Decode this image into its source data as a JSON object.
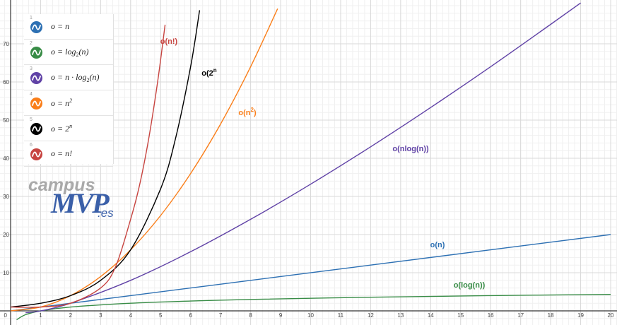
{
  "expressions": [
    {
      "num": "1",
      "lhs": "o = ",
      "body": "n",
      "color": "#2d70b3",
      "icon": "wave-icon"
    },
    {
      "num": "2",
      "lhs": "o = ",
      "body": "log",
      "sub": "2",
      "tail": "(n)",
      "color": "#388c46",
      "icon": "wave-icon"
    },
    {
      "num": "3",
      "lhs": "o = ",
      "body": "n · log",
      "sub": "2",
      "tail": "(n)",
      "color": "#6042a6",
      "icon": "wave-icon"
    },
    {
      "num": "4",
      "lhs": "o = ",
      "body": "n",
      "sup": "2",
      "color": "#fa7e19",
      "icon": "wave-icon"
    },
    {
      "num": "5",
      "lhs": "o = ",
      "body": "2",
      "sup": "n",
      "color": "#000000",
      "icon": "wave-icon"
    },
    {
      "num": "6",
      "lhs": "o = ",
      "body": "n!",
      "color": "#c74440",
      "icon": "wave-icon"
    }
  ],
  "logo": {
    "campus": "campus",
    "mvp": "MVP",
    "es": ".es"
  },
  "chart_data": {
    "type": "line",
    "title": "",
    "xlabel": "",
    "ylabel": "",
    "xlim": [
      -0.3,
      20.2
    ],
    "ylim": [
      -2,
      78
    ],
    "grid": true,
    "x_ticks": [
      0,
      1,
      2,
      3,
      4,
      5,
      6,
      7,
      8,
      9,
      10,
      11,
      12,
      13,
      14,
      15,
      16,
      17,
      18,
      19,
      20
    ],
    "y_ticks": [
      10,
      20,
      30,
      40,
      50,
      60,
      70
    ],
    "series": [
      {
        "name": "o(n)",
        "label": "o(n)",
        "label_sup": "",
        "color": "#2d70b3",
        "x": [
          0,
          1,
          2,
          4,
          8,
          12,
          16,
          20
        ],
        "y": [
          0,
          1,
          2,
          4,
          8,
          12,
          16,
          20
        ]
      },
      {
        "name": "o(log(n))",
        "label": "o(log(n))",
        "label_sup": "",
        "color": "#388c46",
        "x": [
          0.2,
          0.5,
          1,
          2,
          4,
          6,
          8,
          12,
          16,
          20
        ],
        "y": [
          -2.32,
          -1,
          0,
          1,
          2,
          2.58,
          3,
          3.58,
          4,
          4.32
        ]
      },
      {
        "name": "o(nlog(n))",
        "label": "o(nlog(n))",
        "label_sup": "",
        "color": "#6042a6",
        "x": [
          0.5,
          1,
          2,
          4,
          6,
          8,
          10,
          12,
          14,
          16,
          18,
          19
        ],
        "y": [
          -0.5,
          0,
          2,
          8,
          15.5,
          24,
          33.2,
          43,
          53.3,
          64,
          75.1,
          80.7
        ]
      },
      {
        "name": "o(n²)",
        "label": "o(n",
        "label_sup": "2",
        "label_tail": ")",
        "color": "#fa7e19",
        "x": [
          0,
          1,
          2,
          3,
          4,
          5,
          6,
          7,
          8,
          8.9
        ],
        "y": [
          0,
          1,
          4,
          9,
          16,
          25,
          36,
          49,
          64,
          79.2
        ]
      },
      {
        "name": "o(2ⁿ)",
        "label": "o(2",
        "label_sup": "n",
        "label_tail": "",
        "color": "#000000",
        "x": [
          0,
          1,
          2,
          3,
          4,
          5,
          5.5,
          6,
          6.3
        ],
        "y": [
          1,
          2,
          4,
          8,
          16,
          32,
          45.3,
          64,
          78.8
        ]
      },
      {
        "name": "o(n!)",
        "label": "o(n!)",
        "label_sup": "",
        "color": "#c74440",
        "x": [
          0,
          1,
          2,
          3,
          3.5,
          4,
          4.3,
          4.6,
          4.9,
          5.15
        ],
        "y": [
          1,
          1,
          2,
          6,
          11.6,
          24,
          33,
          45,
          60,
          75
        ]
      }
    ]
  }
}
